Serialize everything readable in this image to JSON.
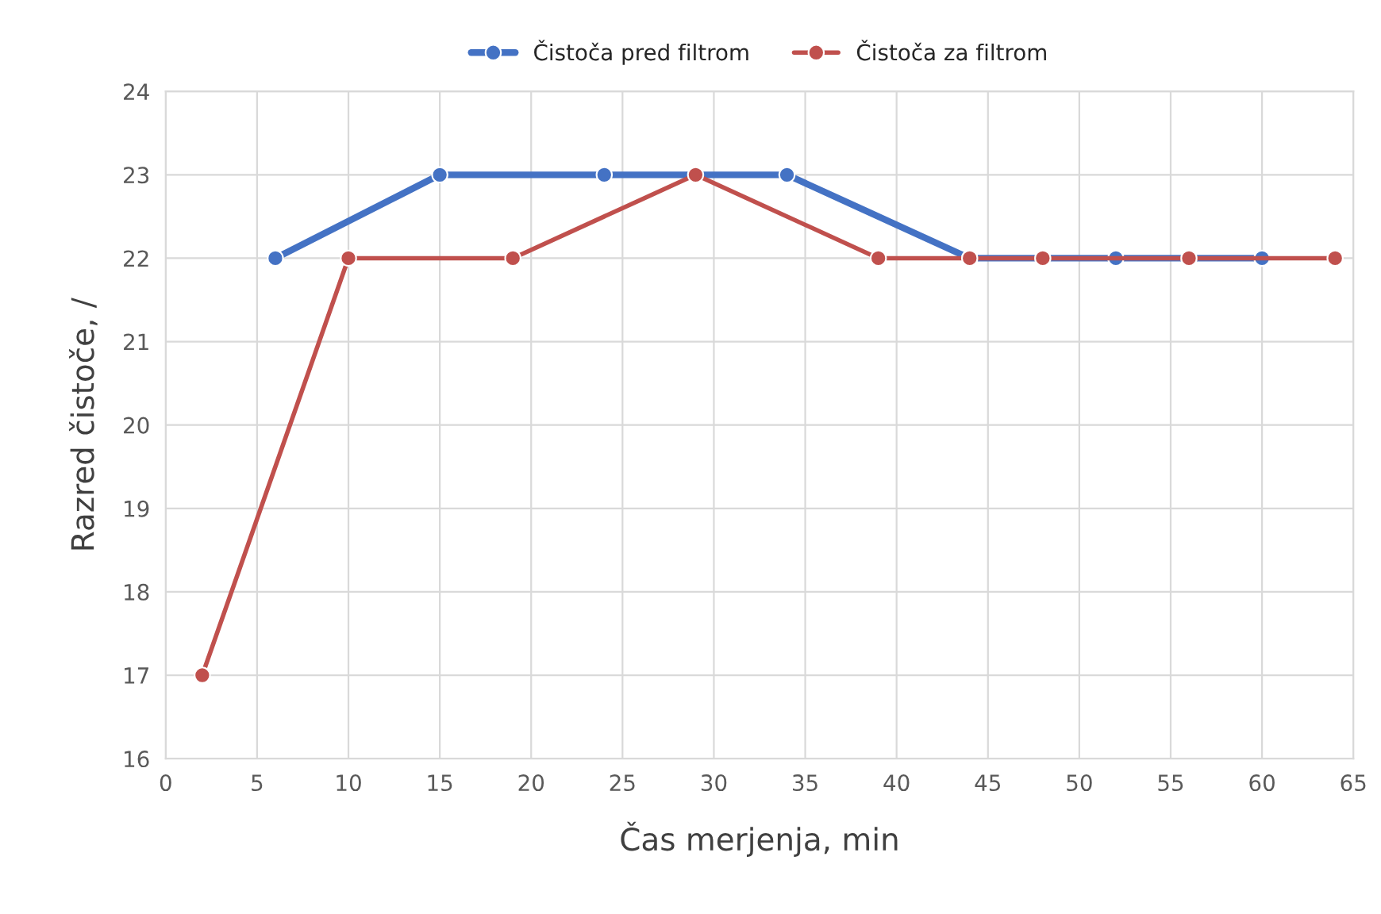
{
  "chart_data": {
    "type": "line",
    "xlabel": "Čas merjenja, min",
    "ylabel": "Razred čistoče, /",
    "xlim": [
      0,
      65
    ],
    "xticks": [
      0,
      5,
      10,
      15,
      20,
      25,
      30,
      35,
      40,
      45,
      50,
      55,
      60,
      65
    ],
    "ylim": [
      16,
      24
    ],
    "yticks": [
      16,
      17,
      18,
      19,
      20,
      21,
      22,
      23,
      24
    ],
    "grid": true,
    "legend": "top",
    "marker": "circle",
    "line_style": "solid",
    "series": [
      {
        "name": "Čistoča pred filtrom",
        "color": "#4472c4",
        "x": [
          6,
          15,
          24,
          34,
          44,
          52,
          56,
          60
        ],
        "values": [
          22,
          23,
          23,
          23,
          22,
          22,
          22,
          22
        ]
      },
      {
        "name": "Čistoča za filtrom",
        "color": "#c0504d",
        "x": [
          2,
          10,
          19,
          29,
          39,
          44,
          48,
          56,
          64
        ],
        "values": [
          17,
          22,
          22,
          23,
          22,
          22,
          22,
          22,
          22
        ]
      }
    ]
  }
}
